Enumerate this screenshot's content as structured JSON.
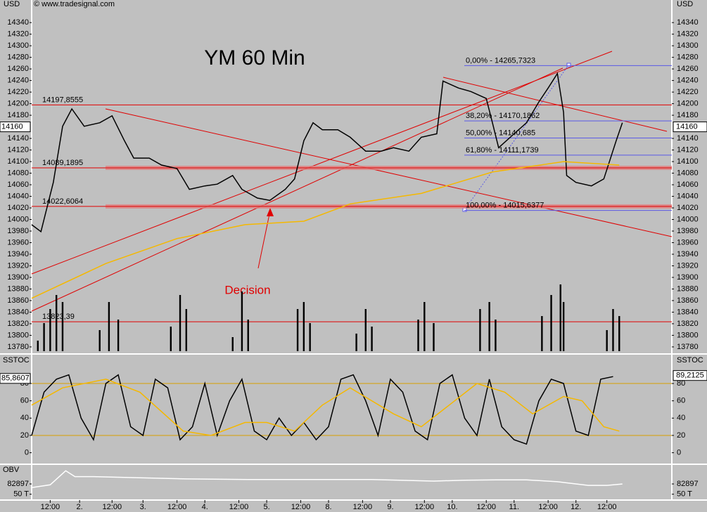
{
  "chart_data": [
    {
      "type": "line",
      "title": "YM 60 Min",
      "copyright": "© www.tradesignal.com",
      "unit": "USD",
      "xlim": [
        0,
        207
      ],
      "ylim": [
        13769,
        14379
      ],
      "yticks": [
        14340,
        14320,
        14300,
        14280,
        14260,
        14240,
        14220,
        14200,
        14180,
        14140,
        14120,
        14100,
        14080,
        14060,
        14040,
        14020,
        14000,
        13980,
        13960,
        13940,
        13920,
        13900,
        13880,
        13860,
        13840,
        13820,
        13800,
        13780
      ],
      "last_price": 14160,
      "series": [
        {
          "color": "#000000",
          "x": [
            0,
            3,
            7,
            10,
            13,
            17,
            22,
            26,
            30,
            33,
            38,
            42,
            47,
            51,
            56,
            60,
            65,
            68,
            73,
            77,
            82,
            85,
            88,
            91,
            94,
            99,
            103,
            108,
            113,
            117,
            122,
            126,
            131,
            133,
            138,
            142,
            147,
            149,
            151,
            156,
            160,
            164,
            167,
            170,
            172,
            173,
            176,
            181,
            185,
            189,
            191
          ],
          "values": [
            13991,
            13979,
            14064,
            14161,
            14191,
            14161,
            14167,
            14179,
            14136,
            14106,
            14106,
            14094,
            14088,
            14052,
            14058,
            14061,
            14076,
            14052,
            14037,
            14033,
            14052,
            14070,
            14136,
            14167,
            14155,
            14155,
            14142,
            14118,
            14118,
            14124,
            14118,
            14142,
            14148,
            14239,
            14227,
            14221,
            14209,
            14167,
            14124,
            14148,
            14167,
            14203,
            14227,
            14252,
            14185,
            14076,
            14064,
            14058,
            14070,
            14136,
            14167
          ]
        },
        {
          "color": "#f5b800",
          "x": [
            0,
            24,
            47,
            69,
            88,
            103,
            126,
            149,
            172,
            190
          ],
          "values": [
            13864,
            13924,
            13967,
            13991,
            13997,
            14027,
            14045,
            14082,
            14100,
            14094
          ]
        }
      ],
      "levels": [
        {
          "value": 14197.8555,
          "label": "14197,8555",
          "highlight": false
        },
        {
          "value": 14089.1895,
          "label": "14089,1895",
          "highlight": true
        },
        {
          "value": 14022.6064,
          "label": "14022,6064",
          "highlight": true
        },
        {
          "value": 13823.39,
          "label": "13823,39",
          "highlight": false
        }
      ],
      "level_color": "#e00000",
      "fib_levels": [
        {
          "value": 14265.7323,
          "label": "0,00% - 14265,7323"
        },
        {
          "value": 14170.1862,
          "label": "38,20% - 14170,1862"
        },
        {
          "value": 14140.685,
          "label": "50,00% - 14140,685"
        },
        {
          "value": 14111.1739,
          "label": "61,80% - 14111,1739"
        },
        {
          "value": 14015.6377,
          "label": "100,00% - 14015,6377"
        }
      ],
      "fib_color": "#5a5ae6",
      "annotation": "Decision",
      "volume": {
        "color": "#000000",
        "ylim": [
          0,
          100
        ],
        "x": [
          2,
          4,
          6,
          8,
          10,
          22,
          25,
          28,
          45,
          48,
          50,
          65,
          68,
          70,
          86,
          88,
          90,
          105,
          108,
          110,
          125,
          127,
          130,
          145,
          148,
          150,
          165,
          168,
          171,
          172,
          186,
          188,
          190
        ],
        "values": [
          15,
          40,
          60,
          80,
          70,
          30,
          70,
          45,
          35,
          80,
          60,
          20,
          85,
          45,
          60,
          70,
          40,
          25,
          60,
          35,
          45,
          70,
          40,
          60,
          70,
          45,
          50,
          80,
          95,
          70,
          30,
          60,
          50
        ]
      }
    },
    {
      "type": "line",
      "title": "SSTOC",
      "xlim": [
        0,
        207
      ],
      "ylim": [
        -12.5,
        112.5
      ],
      "yticks": [
        80,
        60,
        40,
        20,
        0
      ],
      "reference_lines": [
        80,
        20
      ],
      "reference_color": "#d9a000",
      "last_left": {
        "value": 85.8607,
        "label": "85,8607"
      },
      "last_right": {
        "value": 89.2125,
        "label": "89,2125"
      },
      "series": [
        {
          "color": "#000000",
          "x": [
            0,
            4,
            8,
            12,
            16,
            20,
            24,
            28,
            32,
            36,
            40,
            44,
            48,
            52,
            56,
            60,
            64,
            68,
            72,
            76,
            80,
            84,
            88,
            92,
            96,
            100,
            104,
            108,
            112,
            116,
            120,
            124,
            128,
            132,
            136,
            140,
            144,
            148,
            152,
            156,
            160,
            164,
            168,
            172,
            176,
            180,
            184,
            188
          ],
          "values": [
            20,
            70,
            85,
            90,
            40,
            15,
            80,
            90,
            30,
            20,
            85,
            75,
            15,
            30,
            80,
            20,
            60,
            85,
            25,
            15,
            40,
            20,
            35,
            15,
            30,
            85,
            90,
            60,
            20,
            85,
            70,
            25,
            15,
            80,
            90,
            40,
            20,
            85,
            30,
            15,
            10,
            60,
            85,
            80,
            25,
            20,
            85,
            88
          ]
        },
        {
          "color": "#f5b800",
          "x": [
            0,
            10,
            24,
            35,
            49,
            58,
            69,
            76,
            85,
            94,
            103,
            117,
            126,
            135,
            144,
            153,
            162,
            172,
            178,
            185,
            190
          ],
          "values": [
            55,
            75,
            85,
            70,
            25,
            20,
            35,
            35,
            25,
            55,
            75,
            45,
            30,
            55,
            80,
            70,
            45,
            65,
            60,
            30,
            25
          ]
        }
      ]
    },
    {
      "type": "line",
      "title": "OBV",
      "xlim": [
        0,
        207
      ],
      "ylim": [
        31200,
        141600
      ],
      "yticks": [
        82897,
        {
          "value": 50000,
          "label": "50 T"
        }
      ],
      "xticks": [
        {
          "value": 6,
          "label": "12:00"
        },
        {
          "value": 15.5,
          "label": "2."
        },
        {
          "value": 26,
          "label": "12:00"
        },
        {
          "value": 36,
          "label": "3."
        },
        {
          "value": 47,
          "label": "12:00"
        },
        {
          "value": 56,
          "label": "4."
        },
        {
          "value": 67,
          "label": "12:00"
        },
        {
          "value": 76,
          "label": "5."
        },
        {
          "value": 87,
          "label": "12:00"
        },
        {
          "value": 96,
          "label": "8."
        },
        {
          "value": 107,
          "label": "12:00"
        },
        {
          "value": 116,
          "label": "9."
        },
        {
          "value": 127,
          "label": "12:00"
        },
        {
          "value": 136,
          "label": "10."
        },
        {
          "value": 147,
          "label": "12:00"
        },
        {
          "value": 156,
          "label": "11."
        },
        {
          "value": 167,
          "label": "12:00"
        },
        {
          "value": 176,
          "label": "12."
        },
        {
          "value": 186,
          "label": "12:00"
        }
      ],
      "series": [
        {
          "color": "#ffffff",
          "x": [
            0,
            6,
            11,
            14,
            20,
            30,
            50,
            70,
            90,
            110,
            130,
            140,
            150,
            160,
            170,
            180,
            186,
            191
          ],
          "values": [
            71147,
            80000,
            125197,
            106397,
            106397,
            104000,
            99000,
            97000,
            96997,
            97000,
            92000,
            95000,
            96000,
            96000,
            90000,
            78197,
            78197,
            82897
          ]
        }
      ]
    }
  ]
}
